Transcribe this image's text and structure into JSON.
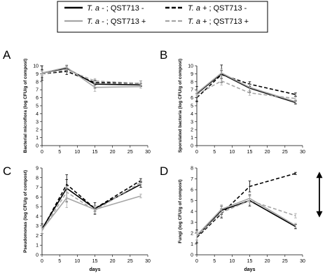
{
  "legend": {
    "entries": [
      {
        "italic": "T. a -",
        "rest": " ; QST713 -",
        "color": "#000000",
        "dash": "solid",
        "width": 2.4
      },
      {
        "italic": "T. a +",
        "rest": " ; QST713 -",
        "color": "#000000",
        "dash": "dashed",
        "width": 2.4
      },
      {
        "italic": "T. a -",
        "rest": " ; QST713 +",
        "color": "#a6a6a6",
        "dash": "solid",
        "width": 2.2
      },
      {
        "italic": "T. a +",
        "rest": " ; QST713 +",
        "color": "#a6a6a6",
        "dash": "dashed",
        "width": 2.2
      }
    ]
  },
  "chart_data": [
    {
      "panel": "A",
      "type": "line",
      "ylabel": "Bacterial microflora (log CFU/g of compost)",
      "xlabel": "",
      "xlim": [
        0,
        30
      ],
      "xticks": [
        0,
        5,
        10,
        15,
        20,
        25,
        30
      ],
      "ylim": [
        0,
        10
      ],
      "yticks": [
        0,
        1,
        2,
        3,
        4,
        5,
        6,
        7,
        8,
        9,
        10
      ],
      "x": [
        0,
        7,
        15,
        28
      ],
      "series": [
        {
          "values": [
            9.1,
            9.7,
            7.7,
            7.6
          ],
          "err": [
            0.9,
            0.3,
            0.5,
            0.2
          ],
          "color": "#000000",
          "dash": "solid"
        },
        {
          "values": [
            9.0,
            9.3,
            7.9,
            7.8
          ],
          "err": [
            0.5,
            0.4,
            0.3,
            0.3
          ],
          "color": "#000000",
          "dash": "dashed"
        },
        {
          "values": [
            9.1,
            9.8,
            7.3,
            7.4
          ],
          "err": [
            0.3,
            0.3,
            0.5,
            0.2
          ],
          "color": "#a6a6a6",
          "dash": "solid"
        },
        {
          "values": [
            9.0,
            9.5,
            8.1,
            7.8
          ],
          "err": [
            0.3,
            0.3,
            0.3,
            0.3
          ],
          "color": "#a6a6a6",
          "dash": "dashed"
        }
      ]
    },
    {
      "panel": "B",
      "type": "line",
      "ylabel": "Sporulated bacteria (log CFU/g of compost)",
      "xlabel": "",
      "xlim": [
        0,
        30
      ],
      "xticks": [
        0,
        5,
        10,
        15,
        20,
        25,
        30
      ],
      "ylim": [
        0,
        10
      ],
      "yticks": [
        0,
        1,
        2,
        3,
        4,
        5,
        6,
        7,
        8,
        9,
        10
      ],
      "x": [
        0,
        7,
        15,
        28
      ],
      "series": [
        {
          "values": [
            6.5,
            9.0,
            7.2,
            5.4
          ],
          "err": [
            0.9,
            1.1,
            0.5,
            0.2
          ],
          "color": "#000000",
          "dash": "solid"
        },
        {
          "values": [
            6.0,
            8.9,
            7.7,
            6.4
          ],
          "err": [
            0.5,
            0.5,
            0.3,
            0.2
          ],
          "color": "#000000",
          "dash": "dashed"
        },
        {
          "values": [
            6.6,
            9.1,
            7.3,
            5.5
          ],
          "err": [
            0.3,
            0.5,
            0.4,
            0.2
          ],
          "color": "#a6a6a6",
          "dash": "solid"
        },
        {
          "values": [
            6.4,
            8.1,
            6.6,
            5.9
          ],
          "err": [
            0.3,
            0.5,
            0.3,
            0.2
          ],
          "color": "#a6a6a6",
          "dash": "dashed"
        }
      ]
    },
    {
      "panel": "C",
      "type": "line",
      "ylabel": "Pseudomonas (log CFU/g of compost)",
      "xlabel": "days",
      "xlim": [
        0,
        30
      ],
      "xticks": [
        0,
        5,
        10,
        15,
        20,
        25,
        30
      ],
      "ylim": [
        0,
        9
      ],
      "yticks": [
        0,
        1,
        2,
        3,
        4,
        5,
        6,
        7,
        8,
        9
      ],
      "x": [
        0,
        7,
        15,
        28
      ],
      "series": [
        {
          "values": [
            2.7,
            6.9,
            4.8,
            7.3
          ],
          "err": [
            0.5,
            1.4,
            0.6,
            0.3
          ],
          "color": "#000000",
          "dash": "solid"
        },
        {
          "values": [
            2.6,
            7.3,
            4.8,
            7.7
          ],
          "err": [
            0.4,
            0.5,
            0.3,
            0.2
          ],
          "color": "#000000",
          "dash": "dashed"
        },
        {
          "values": [
            2.6,
            5.9,
            4.7,
            6.1
          ],
          "err": [
            0.4,
            1.0,
            0.4,
            0.2
          ],
          "color": "#a6a6a6",
          "dash": "solid"
        },
        {
          "values": [
            2.5,
            6.5,
            4.6,
            7.5
          ],
          "err": [
            0.3,
            0.6,
            0.3,
            0.2
          ],
          "color": "#a6a6a6",
          "dash": "dashed"
        }
      ]
    },
    {
      "panel": "D",
      "type": "line",
      "ylabel": "Fungi (log CFU/g of compost)",
      "xlabel": "days",
      "xlim": [
        0,
        30
      ],
      "xticks": [
        0,
        5,
        10,
        15,
        20,
        25,
        30
      ],
      "ylim": [
        0,
        8
      ],
      "yticks": [
        0,
        1,
        2,
        3,
        4,
        5,
        6,
        7,
        8
      ],
      "x": [
        0,
        7,
        15,
        28
      ],
      "series": [
        {
          "values": [
            1.7,
            4.1,
            5.0,
            2.6
          ],
          "err": [
            0.6,
            0.4,
            0.5,
            0.2
          ],
          "color": "#000000",
          "dash": "solid"
        },
        {
          "values": [
            1.6,
            3.8,
            6.3,
            7.5
          ],
          "err": [
            0.5,
            0.4,
            0.5,
            0.1
          ],
          "color": "#000000",
          "dash": "dashed"
        },
        {
          "values": [
            1.8,
            4.2,
            5.2,
            2.7
          ],
          "err": [
            0.4,
            0.4,
            0.4,
            0.2
          ],
          "color": "#a6a6a6",
          "dash": "solid"
        },
        {
          "values": [
            1.7,
            3.9,
            5.0,
            3.6
          ],
          "err": [
            0.4,
            0.4,
            0.4,
            0.2
          ],
          "color": "#a6a6a6",
          "dash": "dashed"
        }
      ],
      "annotation": "double-headed arrow between T. a + ; QST713 - and T. a + ; QST713 + at day 28"
    }
  ]
}
